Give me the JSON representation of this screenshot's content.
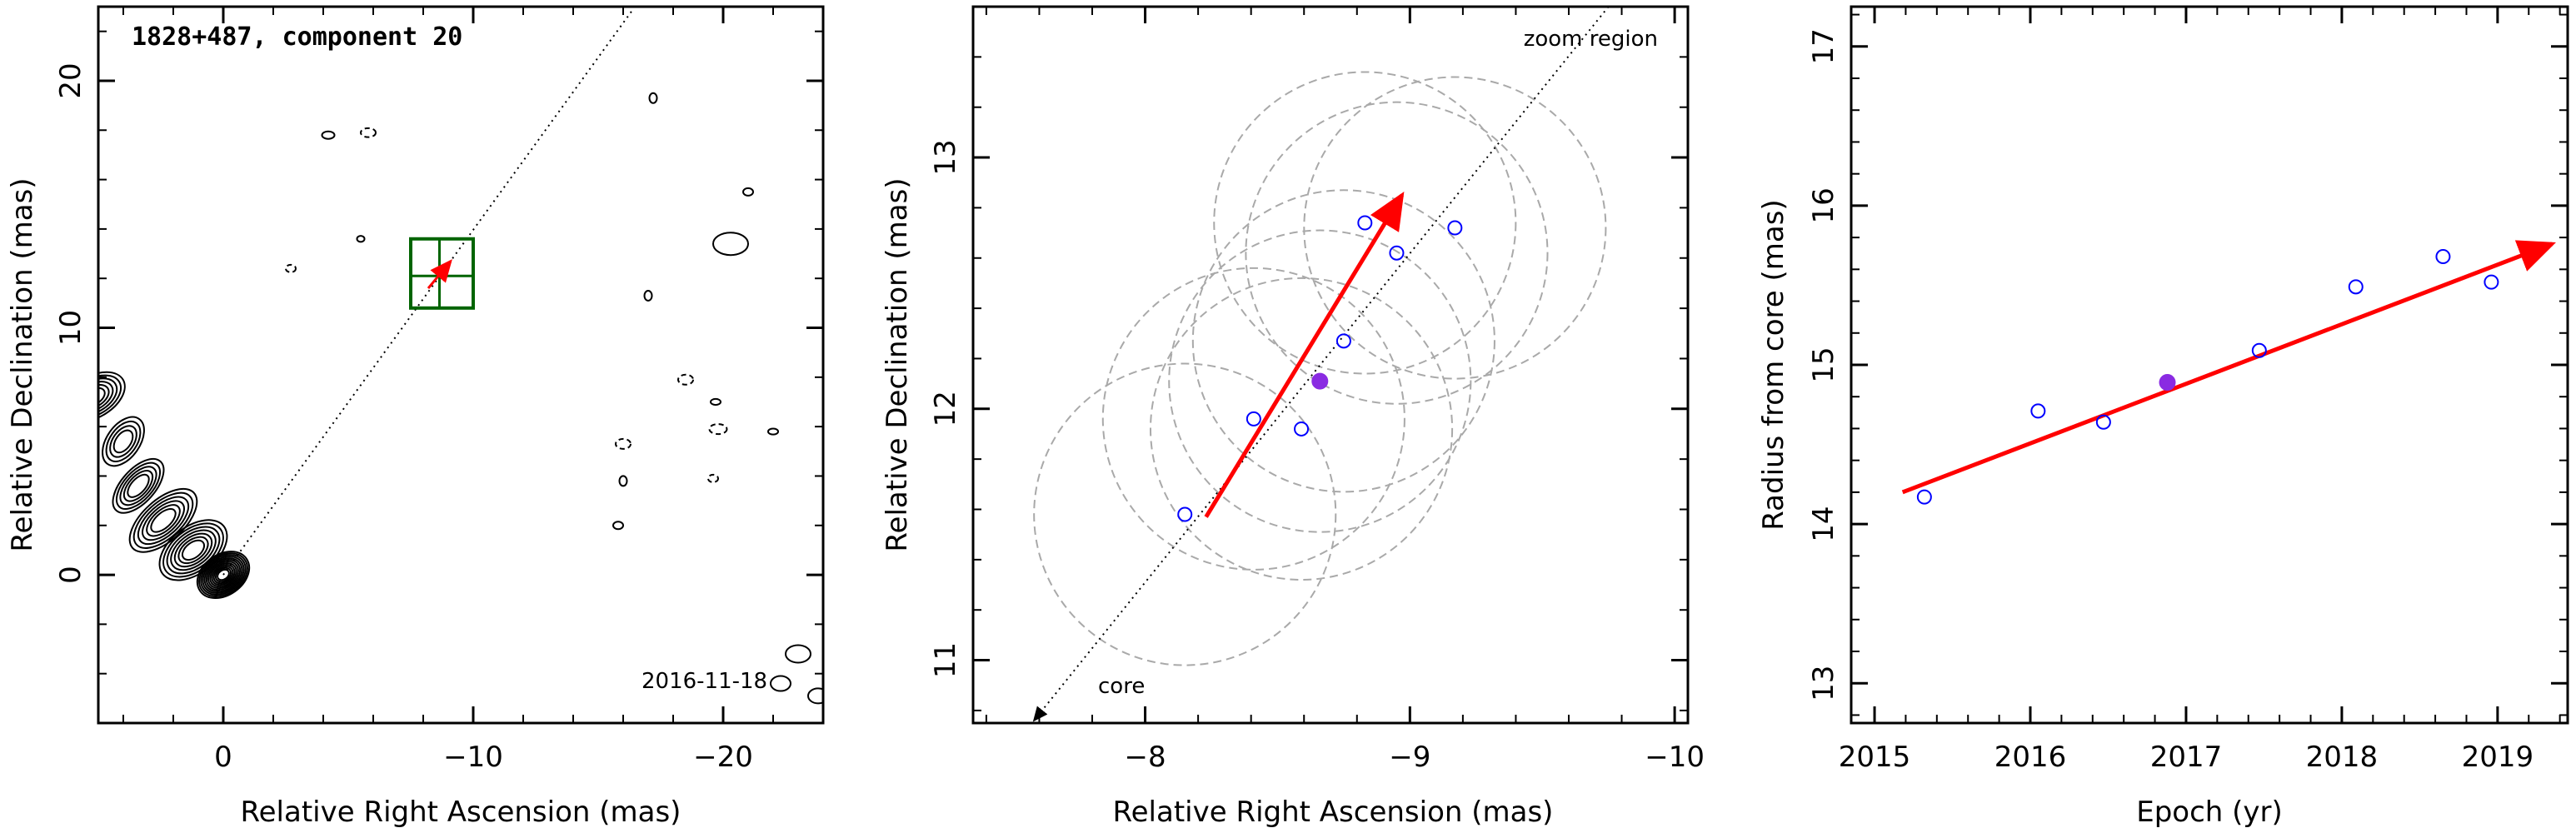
{
  "chart_data": [
    {
      "type": "scatter",
      "panel": "jet contour map",
      "title": "1828+487, component 20",
      "xlabel": "Relative Right Ascension (mas)",
      "ylabel": "Relative Declination (mas)",
      "xlim": [
        5,
        -24
      ],
      "ylim": [
        -6,
        23
      ],
      "x_ticks": [
        0,
        -10,
        -20
      ],
      "y_ticks": [
        0,
        10,
        20
      ],
      "date_label": "2016-11-18",
      "trajectory_line": {
        "from": [
          0,
          0
        ],
        "to": [
          -16.4,
          22.9
        ],
        "style": "dotted"
      },
      "zoom_box": {
        "x_range": [
          -7.5,
          -10.0
        ],
        "y_range": [
          10.8,
          13.6
        ],
        "style": "green rectangle with crosshair"
      },
      "component_position": [
        -8.65,
        12.1
      ],
      "motion_vector": {
        "from": [
          -8.2,
          11.6
        ],
        "to": [
          -9.1,
          12.7
        ],
        "color": "#ff0000"
      },
      "contours": "black total-intensity contours of core-jet structure",
      "grid": false
    },
    {
      "type": "scatter",
      "panel": "zoom region",
      "xlabel": "Relative Right Ascension (mas)",
      "ylabel": "Relative Declination (mas)",
      "xlim": [
        -7.35,
        -10.05
      ],
      "ylim": [
        10.75,
        13.6
      ],
      "x_ticks": [
        -8,
        -9,
        -10
      ],
      "y_ticks": [
        11,
        12,
        13
      ],
      "annotations": [
        "zoom region",
        "core"
      ],
      "series": [
        {
          "marker": "open circle",
          "color": "#0000ff",
          "points": [
            [
              -8.15,
              11.58
            ],
            [
              -8.41,
              11.96
            ],
            [
              -8.59,
              11.92
            ],
            [
              -8.75,
              12.27
            ],
            [
              -8.83,
              12.74
            ],
            [
              -8.95,
              12.62
            ],
            [
              -9.17,
              12.72
            ]
          ]
        },
        {
          "marker": "filled circle",
          "color": "#8a2be2",
          "points": [
            [
              -8.66,
              12.11
            ]
          ]
        }
      ],
      "error_circles": [
        {
          "center": [
            -8.15,
            11.58
          ],
          "radius": 0.6
        },
        {
          "center": [
            -8.41,
            11.96
          ],
          "radius": 0.6
        },
        {
          "center": [
            -8.59,
            11.92
          ],
          "radius": 0.6
        },
        {
          "center": [
            -8.66,
            12.11
          ],
          "radius": 0.6
        },
        {
          "center": [
            -8.75,
            12.27
          ],
          "radius": 0.6
        },
        {
          "center": [
            -8.83,
            12.74
          ],
          "radius": 0.6
        },
        {
          "center": [
            -8.95,
            12.62
          ],
          "radius": 0.6
        },
        {
          "center": [
            -9.17,
            12.72
          ],
          "radius": 0.6
        }
      ],
      "trajectory_line": {
        "from": [
          -7.58,
          10.76
        ],
        "to": [
          -9.75,
          13.6
        ],
        "style": "dotted"
      },
      "motion_vector": {
        "from": [
          -8.23,
          11.57
        ],
        "to": [
          -8.97,
          12.85
        ],
        "color": "#ff0000"
      },
      "grid": false
    },
    {
      "type": "scatter",
      "panel": "radius vs epoch",
      "xlabel": "Epoch (yr)",
      "ylabel": "Radius from core (mas)",
      "xlim": [
        2014.85,
        2019.45
      ],
      "ylim": [
        12.75,
        17.25
      ],
      "x_ticks": [
        2015,
        2016,
        2017,
        2018,
        2019
      ],
      "y_ticks": [
        13,
        14,
        15,
        16,
        17
      ],
      "series": [
        {
          "marker": "open circle",
          "color": "#0000ff",
          "points": [
            [
              2015.32,
              14.17
            ],
            [
              2016.05,
              14.71
            ],
            [
              2016.47,
              14.64
            ],
            [
              2017.47,
              15.09
            ],
            [
              2018.09,
              15.49
            ],
            [
              2018.65,
              15.68
            ],
            [
              2018.96,
              15.52
            ]
          ]
        },
        {
          "marker": "filled circle",
          "color": "#8a2be2",
          "points": [
            [
              2016.88,
              14.89
            ]
          ]
        }
      ],
      "fit_line": {
        "from": [
          2015.18,
          14.2
        ],
        "to": [
          2019.35,
          15.76
        ],
        "color": "#ff0000"
      },
      "grid": false
    }
  ]
}
